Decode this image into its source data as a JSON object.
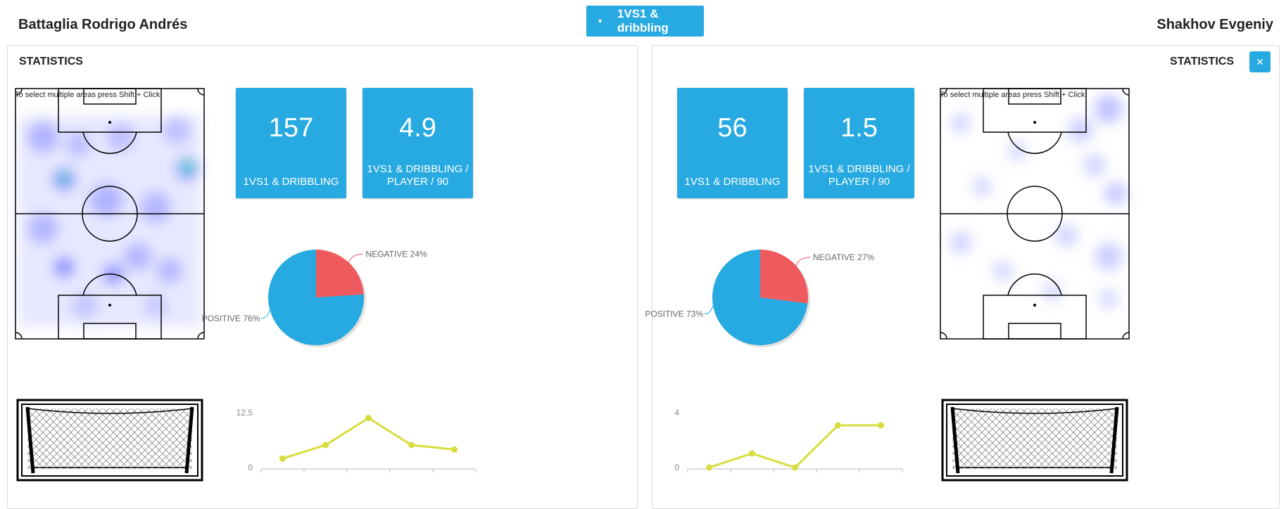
{
  "header": {
    "left_player": "Battaglia Rodrigo Andrés",
    "right_player": "Shakhov Evgeniy",
    "dropdown_label": "1VS1 & dribbling",
    "dropdown_icon": "caret-down-icon"
  },
  "panels": {
    "left": {
      "title": "STATISTICS",
      "pitch_hint": "To select multiple areas press Shift + Click",
      "cards": [
        {
          "value": "157",
          "label": "1VS1 & DRIBBLING"
        },
        {
          "value": "4.9",
          "label": "1VS1 & DRIBBLING / PLAYER / 90"
        }
      ],
      "pie": {
        "negative_label": "NEGATIVE 24%",
        "positive_label": "POSITIVE 76%",
        "negative": 24,
        "positive": 76
      },
      "line": {
        "y_max_label": "12.5",
        "y_min_label": "0",
        "ylim": [
          0,
          12.5
        ],
        "values": [
          2,
          5,
          11,
          5,
          4
        ]
      }
    },
    "right": {
      "title": "STATISTICS",
      "close_icon": "close-icon",
      "pitch_hint": "To select multiple areas press Shift + Click",
      "cards": [
        {
          "value": "56",
          "label": "1VS1 & DRIBBLING"
        },
        {
          "value": "1.5",
          "label": "1VS1 & DRIBBLING / PLAYER / 90"
        }
      ],
      "pie": {
        "negative_label": "NEGATIVE 27%",
        "positive_label": "POSITIVE 73%",
        "negative": 27,
        "positive": 73
      },
      "line": {
        "y_max_label": "4",
        "y_min_label": "0",
        "ylim": [
          0,
          4
        ],
        "values": [
          0,
          1,
          0,
          3,
          3
        ]
      }
    }
  },
  "colors": {
    "accent": "#27a9e1",
    "negative": "#ef5a5e",
    "line": "#d8dc3c"
  },
  "chart_data": [
    {
      "type": "pie",
      "labels": [
        "NEGATIVE",
        "POSITIVE"
      ],
      "values": [
        24,
        76
      ]
    },
    {
      "type": "line",
      "series": [
        {
          "values": [
            2,
            5,
            11,
            5,
            4
          ]
        }
      ],
      "ylim": [
        0,
        12.5
      ]
    },
    {
      "type": "pie",
      "labels": [
        "NEGATIVE",
        "POSITIVE"
      ],
      "values": [
        27,
        73
      ]
    },
    {
      "type": "line",
      "series": [
        {
          "values": [
            0,
            1,
            0,
            3,
            3
          ]
        }
      ],
      "ylim": [
        0,
        4
      ]
    }
  ]
}
